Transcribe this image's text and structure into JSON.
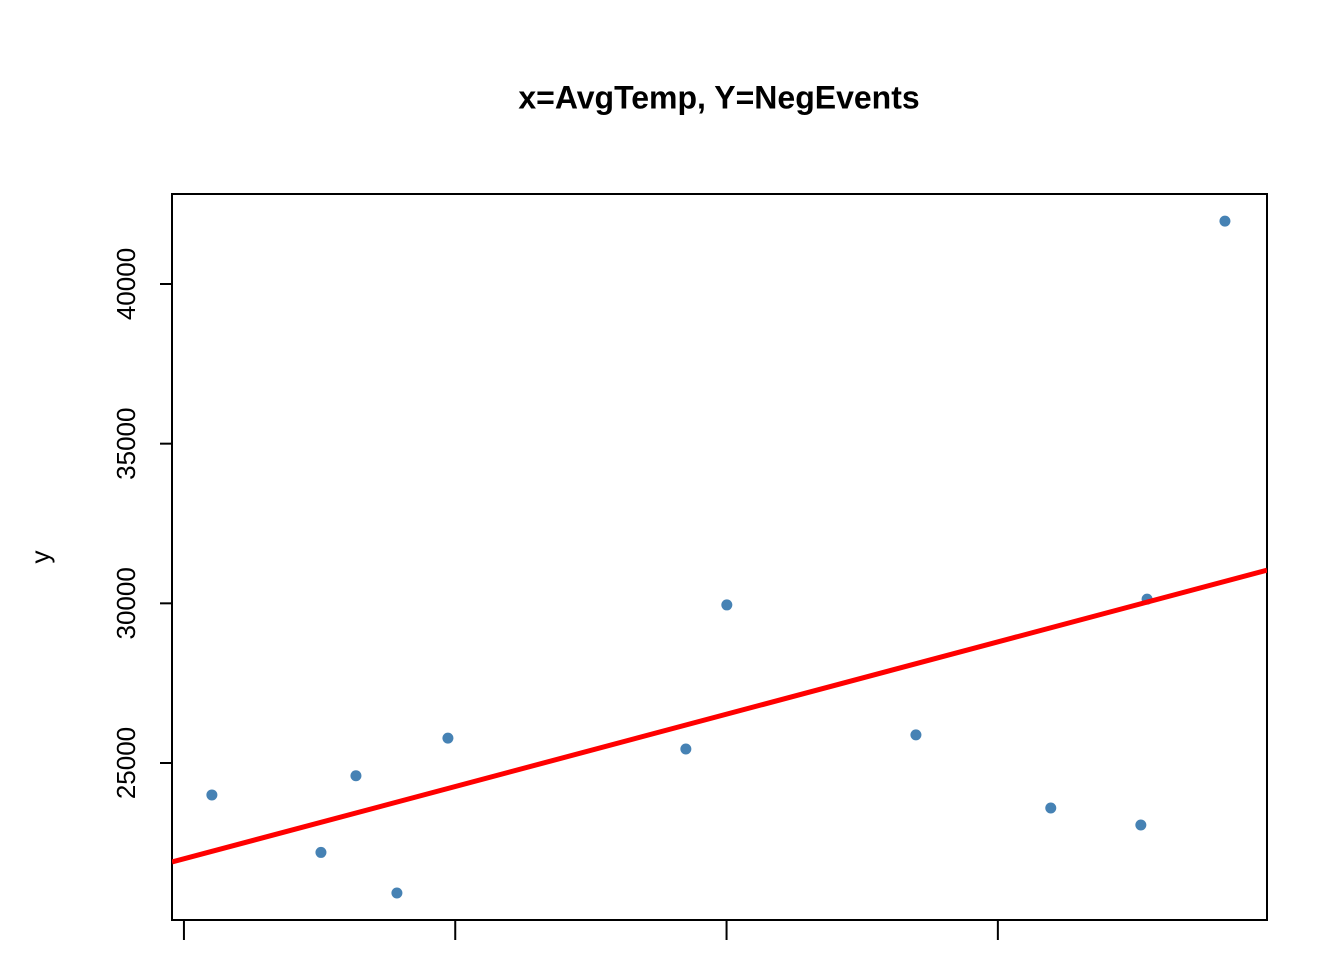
{
  "chart_data": {
    "type": "scatter",
    "title": "x=AvgTemp, Y=NegEvents",
    "y_label": "y",
    "x": [
      1.103,
      1.505,
      1.634,
      1.785,
      1.973,
      2.85,
      3.001,
      3.698,
      4.195,
      4.527,
      4.55,
      4.837
    ],
    "series": [
      {
        "color": "#4682b4",
        "values": [
          24000,
          22200,
          24600,
          20930,
          25780,
          25440,
          29950,
          25880,
          23590,
          23060,
          30130,
          41970
        ]
      }
    ],
    "fit_line": {
      "color": "#ff0000",
      "x": [
        0.956,
        4.992
      ],
      "y": [
        21900,
        31040
      ]
    },
    "xlim": [
      0.956,
      4.992
    ],
    "xticks": [
      1,
      2,
      3,
      4
    ],
    "ylim": [
      20084,
      42818
    ],
    "yticks": [
      25000,
      30000,
      35000,
      40000
    ]
  }
}
